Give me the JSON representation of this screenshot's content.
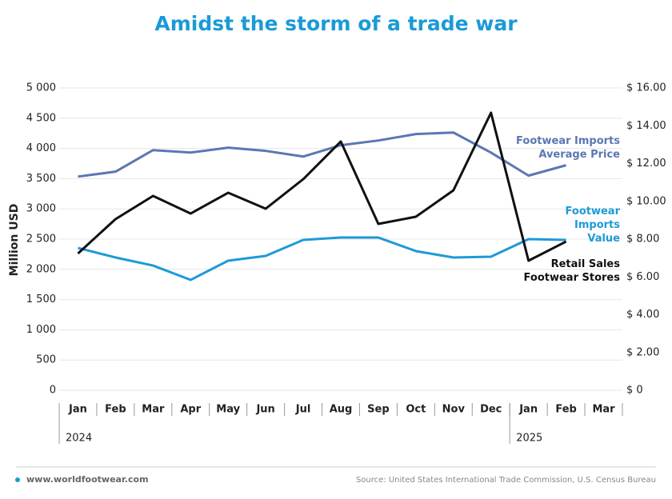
{
  "chart_data": {
    "type": "line",
    "title": "Amidst the storm of a trade war",
    "ylabel": "Million USD",
    "categories": [
      "Jan",
      "Feb",
      "Mar",
      "Apr",
      "May",
      "Jun",
      "Jul",
      "Aug",
      "Sep",
      "Oct",
      "Nov",
      "Dec",
      "Jan",
      "Feb",
      "Mar"
    ],
    "year_groups": [
      {
        "label": "2024",
        "start": 0
      },
      {
        "label": "2025",
        "start": 12
      }
    ],
    "ylim": [
      0,
      5000
    ],
    "yticks": [
      0,
      500,
      {
        "value": 1000,
        "label": "1 000"
      },
      {
        "value": 1500,
        "label": "1 500"
      },
      {
        "value": 2000,
        "label": "2 000"
      },
      {
        "value": 2500,
        "label": "2 500"
      },
      {
        "value": 3000,
        "label": "3 000"
      },
      {
        "value": 3500,
        "label": "3 500"
      },
      {
        "value": 4000,
        "label": "4 000"
      },
      {
        "value": 4500,
        "label": "4 500"
      },
      {
        "value": 5000,
        "label": "5 000"
      }
    ],
    "y2lim": [
      0,
      16
    ],
    "y2ticks": [
      {
        "value": 0,
        "label": "$ 0"
      },
      {
        "value": 2,
        "label": "$ 2.00"
      },
      {
        "value": 4,
        "label": "$ 4.00"
      },
      {
        "value": 6,
        "label": "$ 6.00"
      },
      {
        "value": 8,
        "label": "$ 8.00"
      },
      {
        "value": 10,
        "label": "$ 10.00"
      },
      {
        "value": 12,
        "label": "$ 12.00"
      },
      {
        "value": 14,
        "label": "$ 14.00"
      },
      {
        "value": 16,
        "label": "$ 16.00"
      }
    ],
    "grid": true,
    "series": [
      {
        "name": "Footwear Imports Average Price",
        "color": "#5b77b3",
        "axis": "y2",
        "values": [
          11.31,
          11.57,
          12.71,
          12.58,
          12.84,
          12.67,
          12.37,
          12.97,
          13.22,
          13.56,
          13.64,
          12.58,
          11.36,
          11.91,
          null
        ]
      },
      {
        "name": "Footwear Imports Value",
        "color": "#1e9ad6",
        "values": [
          2354,
          2196,
          2063,
          1825,
          2143,
          2222,
          2487,
          2526,
          2526,
          2302,
          2196,
          2209,
          2500,
          2487,
          null
        ]
      },
      {
        "name": "Retail Sales Footwear Stores",
        "color": "#111111",
        "values": [
          2262,
          2831,
          3214,
          2923,
          3267,
          3003,
          3492,
          4114,
          2751,
          2870,
          3307,
          4590,
          2143,
          2460,
          null
        ]
      }
    ],
    "footer_left": "www.worldfootwear.com",
    "footer_right": "Source: United States International Trade Commission, U.S. Census Bureau"
  }
}
